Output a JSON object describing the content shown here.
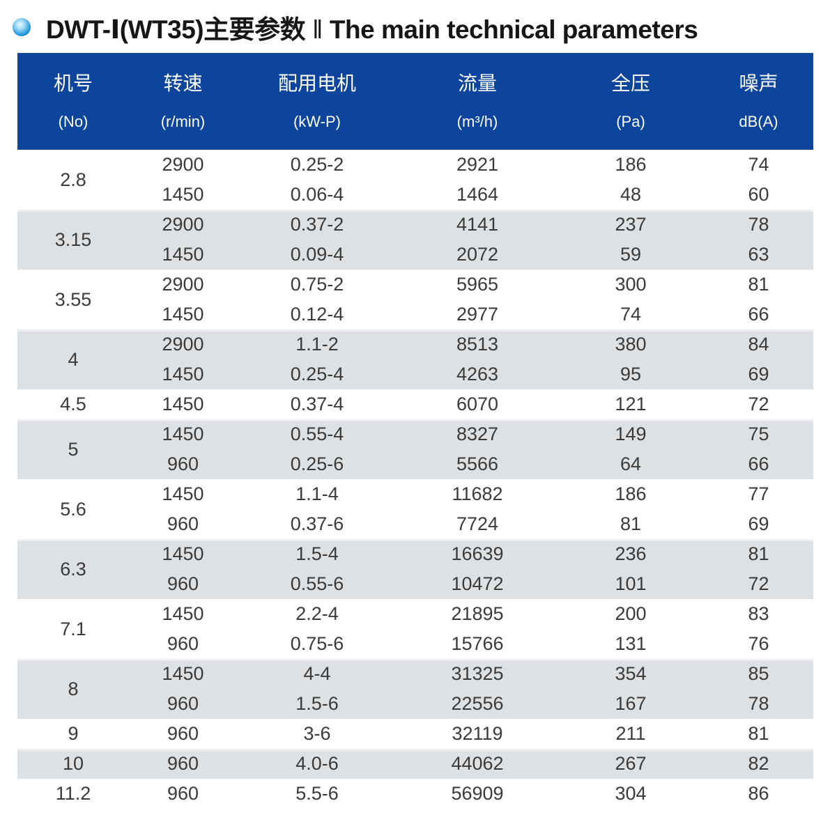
{
  "title": {
    "model": "DWT-Ⅰ(WT35)主要参数",
    "divider": "‖",
    "english": "The main technical parameters"
  },
  "colors": {
    "header_bg": "#0d459c",
    "shaded_row_bg": "#dde1e4",
    "data_text": "#3a3a3a",
    "title_text": "#161616",
    "bullet_blue": "#1289d4"
  },
  "table": {
    "columns": [
      {
        "label_zh": "机号",
        "unit": "(No)"
      },
      {
        "label_zh": "转速",
        "unit": "(r/min)"
      },
      {
        "label_zh": "配用电机",
        "unit": "(kW-P)"
      },
      {
        "label_zh": "流量",
        "unit": "(m³/h)"
      },
      {
        "label_zh": "全压",
        "unit": "(Pa)"
      },
      {
        "label_zh": "噪声",
        "unit": "dB(A)"
      }
    ],
    "groups": [
      {
        "no": "2.8",
        "shade": false,
        "rows": [
          [
            "2900",
            "0.25-2",
            "2921",
            "186",
            "74"
          ],
          [
            "1450",
            "0.06-4",
            "1464",
            "48",
            "60"
          ]
        ]
      },
      {
        "no": "3.15",
        "shade": true,
        "rows": [
          [
            "2900",
            "0.37-2",
            "4141",
            "237",
            "78"
          ],
          [
            "1450",
            "0.09-4",
            "2072",
            "59",
            "63"
          ]
        ]
      },
      {
        "no": "3.55",
        "shade": false,
        "rows": [
          [
            "2900",
            "0.75-2",
            "5965",
            "300",
            "81"
          ],
          [
            "1450",
            "0.12-4",
            "2977",
            "74",
            "66"
          ]
        ]
      },
      {
        "no": "4",
        "shade": true,
        "rows": [
          [
            "2900",
            "1.1-2",
            "8513",
            "380",
            "84"
          ],
          [
            "1450",
            "0.25-4",
            "4263",
            "95",
            "69"
          ]
        ]
      },
      {
        "no": "4.5",
        "shade": false,
        "rows": [
          [
            "1450",
            "0.37-4",
            "6070",
            "121",
            "72"
          ]
        ]
      },
      {
        "no": "5",
        "shade": true,
        "rows": [
          [
            "1450",
            "0.55-4",
            "8327",
            "149",
            "75"
          ],
          [
            "960",
            "0.25-6",
            "5566",
            "64",
            "66"
          ]
        ]
      },
      {
        "no": "5.6",
        "shade": false,
        "rows": [
          [
            "1450",
            "1.1-4",
            "11682",
            "186",
            "77"
          ],
          [
            "960",
            "0.37-6",
            "7724",
            "81",
            "69"
          ]
        ]
      },
      {
        "no": "6.3",
        "shade": true,
        "rows": [
          [
            "1450",
            "1.5-4",
            "16639",
            "236",
            "81"
          ],
          [
            "960",
            "0.55-6",
            "10472",
            "101",
            "72"
          ]
        ]
      },
      {
        "no": "7.1",
        "shade": false,
        "rows": [
          [
            "1450",
            "2.2-4",
            "21895",
            "200",
            "83"
          ],
          [
            "960",
            "0.75-6",
            "15766",
            "131",
            "76"
          ]
        ]
      },
      {
        "no": "8",
        "shade": true,
        "rows": [
          [
            "1450",
            "4-4",
            "31325",
            "354",
            "85"
          ],
          [
            "960",
            "1.5-6",
            "22556",
            "167",
            "78"
          ]
        ]
      },
      {
        "no": "9",
        "shade": false,
        "rows": [
          [
            "960",
            "3-6",
            "32119",
            "211",
            "81"
          ]
        ]
      },
      {
        "no": "10",
        "shade": true,
        "rows": [
          [
            "960",
            "4.0-6",
            "44062",
            "267",
            "82"
          ]
        ]
      },
      {
        "no": "11.2",
        "shade": false,
        "rows": [
          [
            "960",
            "5.5-6",
            "56909",
            "304",
            "86"
          ]
        ]
      }
    ]
  }
}
